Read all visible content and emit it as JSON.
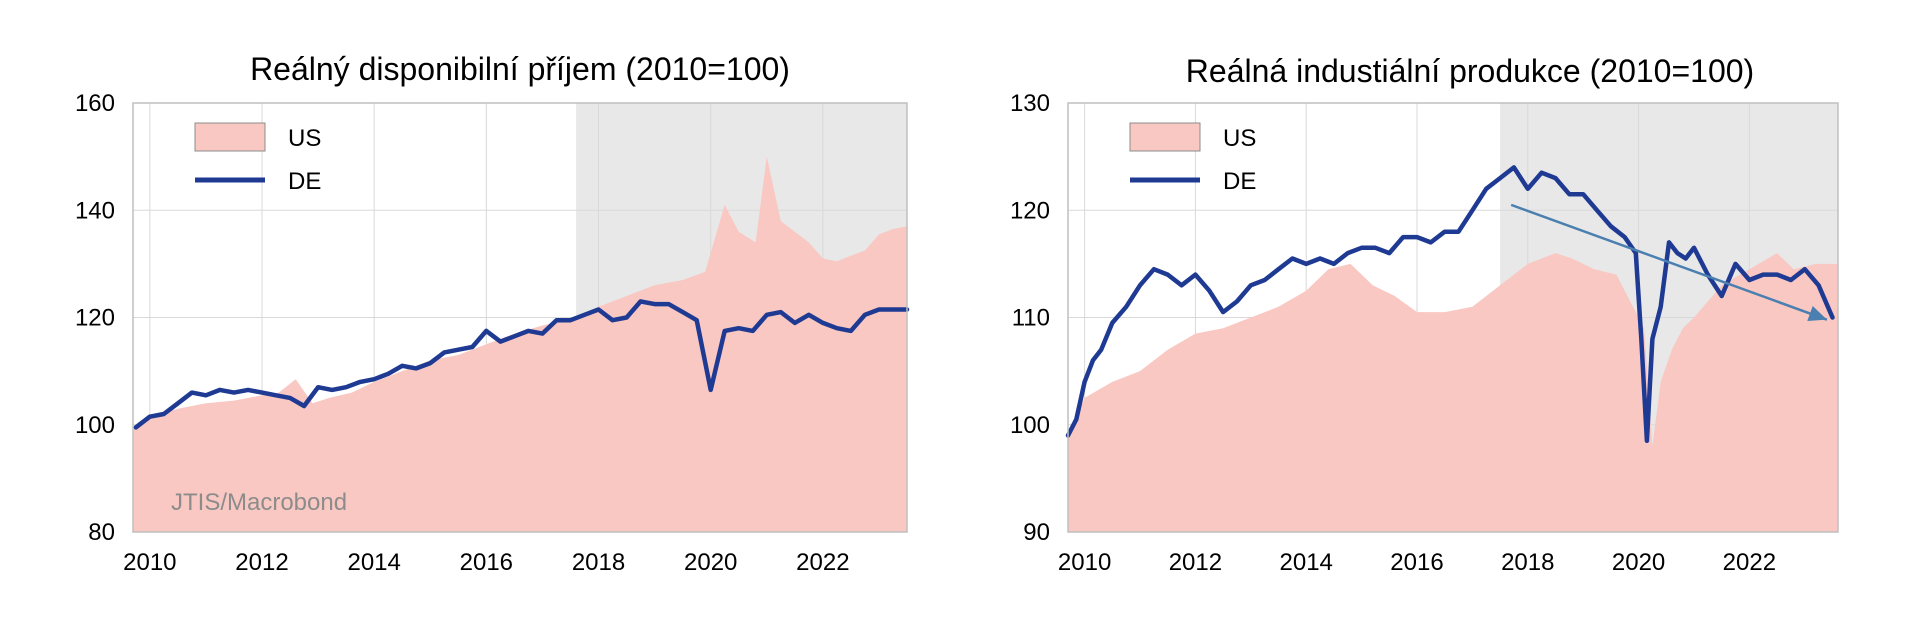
{
  "chart_data": [
    {
      "type": "area",
      "title": "Reálný disponibilní příjem (2010=100)",
      "source": "JTIS/Macrobond",
      "xlim": [
        2009.7,
        2023.5
      ],
      "ylim": [
        80,
        160
      ],
      "yticks": [
        "80",
        "100",
        "120",
        "140",
        "160"
      ],
      "xticks": [
        "2010",
        "2012",
        "2014",
        "2016",
        "2018",
        "2020",
        "2022"
      ],
      "shaded_from": 2017.6,
      "legend": [
        "US",
        "DE"
      ],
      "colors": {
        "US": "#f9c8c2",
        "DE": "#1f3a93",
        "shade": "#e8e8e8",
        "grid": "#d9d9d9"
      },
      "series": [
        {
          "name": "US",
          "x": [
            2009.7,
            2010.0,
            2010.5,
            2011.0,
            2011.5,
            2012.0,
            2012.3,
            2012.6,
            2012.9,
            2013.2,
            2013.6,
            2014.0,
            2014.5,
            2015.0,
            2015.5,
            2016.0,
            2016.5,
            2017.0,
            2017.6,
            2018.0,
            2018.5,
            2019.0,
            2019.5,
            2019.9,
            2020.25,
            2020.5,
            2020.8,
            2021.0,
            2021.25,
            2021.5,
            2021.75,
            2022.0,
            2022.25,
            2022.5,
            2022.75,
            2023.0,
            2023.25,
            2023.5
          ],
          "y": [
            99,
            101.5,
            103,
            104,
            104.5,
            105.5,
            106,
            108.5,
            104,
            105,
            106,
            108,
            110,
            112,
            113,
            115,
            117,
            118.5,
            120,
            122,
            124,
            126,
            127,
            128.5,
            141,
            136,
            134,
            150,
            138,
            136,
            134,
            131,
            130.5,
            131.5,
            132.5,
            135.5,
            136.5,
            137
          ]
        },
        {
          "name": "DE",
          "x": [
            2009.75,
            2010.0,
            2010.25,
            2010.5,
            2010.75,
            2011.0,
            2011.25,
            2011.5,
            2011.75,
            2012.0,
            2012.25,
            2012.5,
            2012.75,
            2013.0,
            2013.25,
            2013.5,
            2013.75,
            2014.0,
            2014.25,
            2014.5,
            2014.75,
            2015.0,
            2015.25,
            2015.5,
            2015.75,
            2016.0,
            2016.25,
            2016.5,
            2016.75,
            2017.0,
            2017.25,
            2017.5,
            2017.75,
            2018.0,
            2018.25,
            2018.5,
            2018.75,
            2019.0,
            2019.25,
            2019.5,
            2019.75,
            2020.0,
            2020.25,
            2020.5,
            2020.75,
            2021.0,
            2021.25,
            2021.5,
            2021.75,
            2022.0,
            2022.25,
            2022.5,
            2022.75,
            2023.0,
            2023.25,
            2023.5
          ],
          "y": [
            99.5,
            101.5,
            102,
            104,
            106,
            105.5,
            106.5,
            106,
            106.5,
            106,
            105.5,
            105,
            103.5,
            107,
            106.5,
            107,
            108,
            108.5,
            109.5,
            111,
            110.5,
            111.5,
            113.5,
            114,
            114.5,
            117.5,
            115.5,
            116.5,
            117.5,
            117,
            119.5,
            119.5,
            120.5,
            121.5,
            119.5,
            120,
            123,
            122.5,
            122.5,
            121,
            119.5,
            106.5,
            117.5,
            118,
            117.5,
            120.5,
            121,
            119,
            120.5,
            119,
            118,
            117.5,
            120.5,
            121.5,
            121.5,
            121.5
          ]
        }
      ]
    },
    {
      "type": "area",
      "title": "Reálná industiální produkce (2010=100)",
      "xlim": [
        2009.7,
        2023.6
      ],
      "ylim": [
        90,
        130
      ],
      "yticks": [
        "90",
        "100",
        "110",
        "120",
        "130"
      ],
      "xticks": [
        "2010",
        "2012",
        "2014",
        "2016",
        "2018",
        "2020",
        "2022"
      ],
      "shaded_from": 2017.5,
      "legend": [
        "US",
        "DE"
      ],
      "trend_arrow": {
        "from": [
          2017.7,
          120.5
        ],
        "to": [
          2023.4,
          109.8
        ],
        "color": "#4a7fb0"
      },
      "colors": {
        "US": "#f9c8c2",
        "DE": "#1f3a93",
        "shade": "#e8e8e8",
        "grid": "#d9d9d9"
      },
      "series": [
        {
          "name": "US",
          "x": [
            2009.7,
            2010.0,
            2010.5,
            2011.0,
            2011.5,
            2012.0,
            2012.5,
            2013.0,
            2013.5,
            2014.0,
            2014.4,
            2014.8,
            2015.2,
            2015.6,
            2016.0,
            2016.5,
            2017.0,
            2017.5,
            2018.0,
            2018.5,
            2018.8,
            2019.2,
            2019.6,
            2019.9,
            2020.1,
            2020.25,
            2020.4,
            2020.6,
            2020.8,
            2021.0,
            2021.5,
            2022.0,
            2022.5,
            2022.8,
            2023.2,
            2023.6
          ],
          "y": [
            99,
            102.5,
            104,
            105,
            107,
            108.5,
            109,
            110,
            111,
            112.5,
            114.5,
            115,
            113,
            112,
            110.5,
            110.5,
            111,
            113,
            115,
            116,
            115.5,
            114.5,
            114,
            111,
            109,
            98,
            104,
            107,
            109,
            110,
            113,
            114.5,
            116,
            114.5,
            115,
            115
          ]
        },
        {
          "name": "DE",
          "x": [
            2009.7,
            2009.85,
            2010.0,
            2010.15,
            2010.3,
            2010.5,
            2010.75,
            2011.0,
            2011.25,
            2011.5,
            2011.75,
            2012.0,
            2012.25,
            2012.5,
            2012.75,
            2013.0,
            2013.25,
            2013.5,
            2013.75,
            2014.0,
            2014.25,
            2014.5,
            2014.75,
            2015.0,
            2015.25,
            2015.5,
            2015.75,
            2016.0,
            2016.25,
            2016.5,
            2016.75,
            2017.0,
            2017.25,
            2017.5,
            2017.75,
            2018.0,
            2018.25,
            2018.5,
            2018.75,
            2019.0,
            2019.25,
            2019.5,
            2019.75,
            2019.95,
            2020.05,
            2020.15,
            2020.25,
            2020.4,
            2020.55,
            2020.7,
            2020.85,
            2021.0,
            2021.25,
            2021.5,
            2021.75,
            2022.0,
            2022.25,
            2022.5,
            2022.75,
            2023.0,
            2023.25,
            2023.5
          ],
          "y": [
            99,
            100.5,
            104,
            106,
            107,
            109.5,
            111,
            113,
            114.5,
            114,
            113,
            114,
            112.5,
            110.5,
            111.5,
            113,
            113.5,
            114.5,
            115.5,
            115,
            115.5,
            115,
            116,
            116.5,
            116.5,
            116,
            117.5,
            117.5,
            117,
            118,
            118,
            120,
            122,
            123,
            124,
            122,
            123.5,
            123,
            121.5,
            121.5,
            120,
            118.5,
            117.5,
            116,
            108,
            98.5,
            108,
            111,
            117,
            116,
            115.5,
            116.5,
            114,
            112,
            115,
            113.5,
            114,
            114,
            113.5,
            114.5,
            113,
            110
          ]
        }
      ]
    }
  ]
}
